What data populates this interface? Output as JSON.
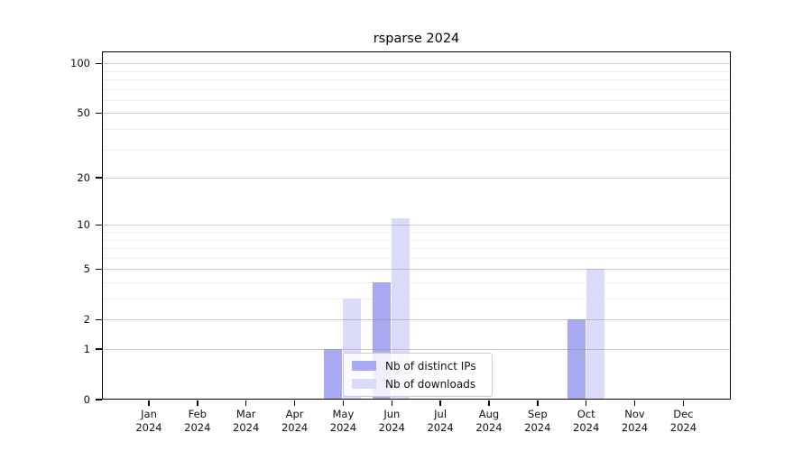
{
  "chart_data": {
    "type": "bar",
    "title": "rsparse 2024",
    "categories": [
      "Jan 2024",
      "Feb 2024",
      "Mar 2024",
      "Apr 2024",
      "May 2024",
      "Jun 2024",
      "Jul 2024",
      "Aug 2024",
      "Sep 2024",
      "Oct 2024",
      "Nov 2024",
      "Dec 2024"
    ],
    "series": [
      {
        "name": "Nb of distinct IPs",
        "color": "#aaaaf2",
        "values": [
          0,
          0,
          0,
          0,
          1,
          4,
          0,
          0,
          0,
          2,
          0,
          0
        ]
      },
      {
        "name": "Nb of downloads",
        "color": "#dbdbf8",
        "values": [
          0,
          0,
          0,
          0,
          3,
          11,
          0,
          0,
          0,
          5,
          0,
          0
        ]
      }
    ],
    "yscale": "log1p",
    "ylim": [
      0,
      118
    ],
    "y_major_ticks": [
      0,
      1,
      2,
      5,
      10,
      20,
      50,
      100
    ],
    "y_minor_gridlines": [
      3,
      4,
      6,
      7,
      8,
      9,
      30,
      40,
      60,
      70,
      80,
      90
    ],
    "grid": "on",
    "legend_position": "lower center"
  },
  "legend": {
    "items": [
      {
        "label": "Nb of distinct IPs",
        "color": "#aaaaf2"
      },
      {
        "label": "Nb of downloads",
        "color": "#dbdbf8"
      }
    ]
  },
  "colors": {
    "spine": "#000000",
    "major_grid": "#8f8f8f",
    "minor_grid": "#dcdcdc",
    "text": "#111111",
    "background": "#ffffff"
  }
}
